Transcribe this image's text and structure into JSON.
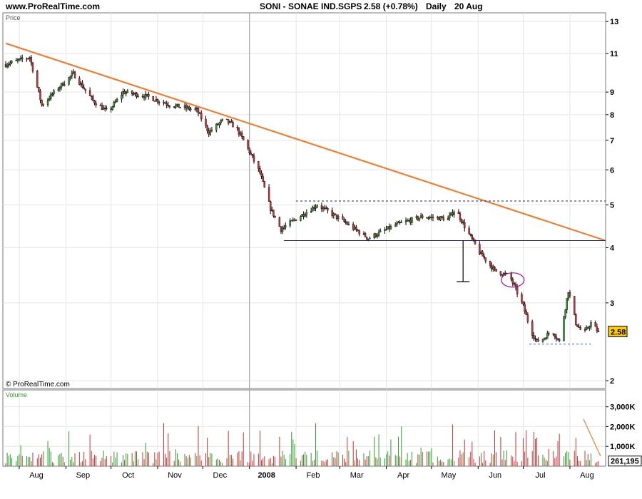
{
  "header": {
    "site": "www.ProRealTime.com",
    "symbol": "SONI - SONAE IND.SGPS",
    "last": "2.58 (+0.78%)",
    "period": "Daily",
    "date": "20 Aug"
  },
  "colors": {
    "up": "#2f9e2f",
    "down": "#d23030",
    "trendline": "#f07f30",
    "level": "#1c1c8c",
    "highlight_ellipse": "#a020a0",
    "price_label_bg": "#ffcc00",
    "grid": "#e4e4e4",
    "volume_panel_bg": "#ffffff"
  },
  "chart_data": [
    {
      "type": "candlestick",
      "title": "Price",
      "scale": "log",
      "ylim": [
        1.92,
        13.6
      ],
      "y_ticks": [
        "13",
        "11",
        "9",
        "8",
        "7",
        "6",
        "5",
        "4",
        "3",
        "2"
      ],
      "x_ticks": [
        "Aug",
        "Sep",
        "Oct",
        "Nov",
        "Dec",
        "2008",
        "Feb",
        "Mar",
        "Apr",
        "May",
        "Jun",
        "Jul",
        "Aug"
      ],
      "last_price_label": "2.58",
      "watermark": "© ProRealTime.com",
      "grid": true,
      "date_range": [
        "2007-07-23",
        "2008-08-20"
      ],
      "anchors": [
        [
          "2007-07-23",
          10.4
        ],
        [
          "2007-08-08",
          10.8
        ],
        [
          "2007-08-16",
          8.4
        ],
        [
          "2007-08-27",
          9.2
        ],
        [
          "2007-09-06",
          9.9
        ],
        [
          "2007-09-19",
          8.6
        ],
        [
          "2007-09-29",
          8.1
        ],
        [
          "2007-10-09",
          9.0
        ],
        [
          "2007-10-25",
          8.8
        ],
        [
          "2007-11-10",
          8.4
        ],
        [
          "2007-11-27",
          8.2
        ],
        [
          "2007-12-05",
          7.3
        ],
        [
          "2007-12-15",
          7.8
        ],
        [
          "2007-12-23",
          7.5
        ],
        [
          "2007-12-31",
          6.7
        ],
        [
          "2008-01-08",
          5.9
        ],
        [
          "2008-01-15",
          4.9
        ],
        [
          "2008-01-22",
          4.4
        ],
        [
          "2008-01-30",
          4.6
        ],
        [
          "2008-02-15",
          5.0
        ],
        [
          "2008-03-03",
          4.6
        ],
        [
          "2008-03-20",
          4.2
        ],
        [
          "2008-04-07",
          4.5
        ],
        [
          "2008-04-25",
          4.7
        ],
        [
          "2008-05-12",
          4.65
        ],
        [
          "2008-05-17",
          4.9
        ],
        [
          "2008-05-24",
          4.4
        ],
        [
          "2008-06-02",
          3.9
        ],
        [
          "2008-06-12",
          3.55
        ],
        [
          "2008-06-22",
          3.45
        ],
        [
          "2008-07-01",
          2.95
        ],
        [
          "2008-07-06",
          2.6
        ],
        [
          "2008-07-10",
          2.45
        ],
        [
          "2008-07-15",
          2.5
        ],
        [
          "2008-07-20",
          2.6
        ],
        [
          "2008-07-25",
          2.45
        ],
        [
          "2008-07-31",
          3.2
        ],
        [
          "2008-08-05",
          2.7
        ],
        [
          "2008-08-10",
          2.55
        ],
        [
          "2008-08-15",
          2.7
        ],
        [
          "2008-08-20",
          2.58
        ]
      ],
      "annotations": {
        "trendline": {
          "start": [
            "2007-07-23",
            11.6
          ],
          "end": [
            "2008-08-20",
            4.15
          ]
        },
        "resistance": {
          "from": "2008-02-01",
          "to": "2008-08-20",
          "value": 5.1
        },
        "support": {
          "from": "2008-01-24",
          "to": "2008-08-20",
          "value": 4.15
        },
        "support_low": {
          "from": "2008-07-05",
          "to": "2008-08-15",
          "value": 2.42
        },
        "measure": {
          "date": "2008-05-22",
          "from": 4.15,
          "to": 3.35
        },
        "ellipse": {
          "date": "2008-06-24",
          "value": 3.38
        },
        "year_marker": "2008-01-01"
      }
    },
    {
      "type": "bar",
      "title": "Volume",
      "y_ticks": [
        "3,000K",
        "2,000K",
        "1,000K"
      ],
      "ylim": [
        0,
        3850000
      ],
      "last_value_label": "261,195"
    }
  ]
}
